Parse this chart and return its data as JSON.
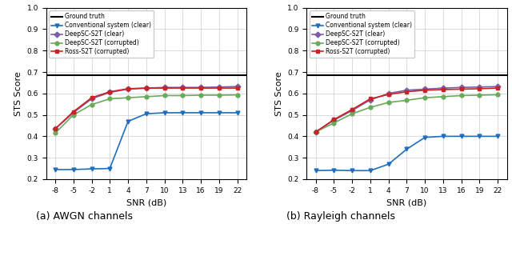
{
  "snr": [
    -8,
    -5,
    -2,
    1,
    4,
    7,
    10,
    13,
    16,
    19,
    22
  ],
  "ground_truth": 0.685,
  "awgn": {
    "conventional": [
      0.245,
      0.245,
      0.248,
      0.25,
      0.47,
      0.505,
      0.51,
      0.51,
      0.51,
      0.51,
      0.51
    ],
    "deepsc_clear": [
      0.435,
      0.51,
      0.575,
      0.605,
      0.62,
      0.625,
      0.628,
      0.628,
      0.628,
      0.63,
      0.632
    ],
    "deepsc_corrupted": [
      0.415,
      0.5,
      0.548,
      0.575,
      0.58,
      0.585,
      0.59,
      0.59,
      0.592,
      0.592,
      0.593
    ],
    "ross": [
      0.435,
      0.515,
      0.58,
      0.608,
      0.622,
      0.625,
      0.625,
      0.625,
      0.625,
      0.625,
      0.625
    ]
  },
  "rayleigh": {
    "conventional": [
      0.24,
      0.242,
      0.24,
      0.24,
      0.27,
      0.34,
      0.395,
      0.4,
      0.4,
      0.4,
      0.4
    ],
    "deepsc_clear": [
      0.42,
      0.475,
      0.52,
      0.57,
      0.6,
      0.615,
      0.62,
      0.625,
      0.628,
      0.63,
      0.632
    ],
    "deepsc_corrupted": [
      0.42,
      0.462,
      0.505,
      0.535,
      0.558,
      0.568,
      0.58,
      0.585,
      0.59,
      0.592,
      0.594
    ],
    "ross": [
      0.42,
      0.478,
      0.525,
      0.575,
      0.595,
      0.608,
      0.615,
      0.618,
      0.62,
      0.622,
      0.625
    ]
  },
  "colors": {
    "ground_truth": "#000000",
    "conventional": "#1f6dbf",
    "deepsc_clear": "#7b5ea7",
    "deepsc_corrupted": "#6aaa5a",
    "ross": "#cc2222"
  },
  "legend_labels": {
    "ground_truth": "Ground truth",
    "conventional": "Conventional system (clear)",
    "deepsc_clear": "DeepSC-S2T (clear)",
    "deepsc_corrupted": "DeepSC-S2T (corrupted)",
    "ross": "Ross-S2T (corrupted)"
  },
  "xlabel": "SNR (dB)",
  "ylabel": "STS Score",
  "ylim": [
    0.2,
    1.0
  ],
  "yticks": [
    0.2,
    0.3,
    0.4,
    0.5,
    0.6,
    0.7,
    0.8,
    0.9,
    1.0
  ],
  "subtitle_a": "(a) AWGN channels",
  "subtitle_b": "(b) Rayleigh channels"
}
